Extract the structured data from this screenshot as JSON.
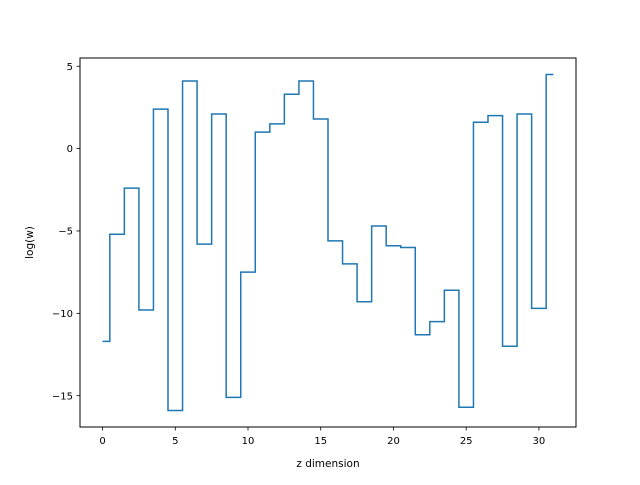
{
  "chart_data": {
    "type": "line",
    "drawstyle": "steps-mid",
    "title": "",
    "xlabel": "z dimension",
    "ylabel": "log(w)",
    "xlim": [
      -1.55,
      32.55
    ],
    "ylim": [
      -16.9,
      5.5
    ],
    "xticks": [
      0,
      5,
      10,
      15,
      20,
      25,
      30
    ],
    "xtick_labels": [
      "0",
      "5",
      "10",
      "15",
      "20",
      "25",
      "30"
    ],
    "yticks": [
      -15,
      -10,
      -5,
      0,
      5
    ],
    "ytick_labels": [
      "−15",
      "−10",
      "−5",
      "0",
      "5"
    ],
    "grid": false,
    "legend": "none",
    "series": [
      {
        "color": "#1f77b4",
        "x": [
          0,
          1,
          2,
          3,
          4,
          5,
          6,
          7,
          8,
          9,
          10,
          11,
          12,
          13,
          14,
          15,
          16,
          17,
          18,
          19,
          20,
          21,
          22,
          23,
          24,
          25,
          26,
          27,
          28,
          29,
          30,
          31
        ],
        "y": [
          -11.7,
          -5.2,
          -2.4,
          -9.8,
          2.4,
          -15.9,
          4.1,
          -5.8,
          2.1,
          -15.1,
          -7.5,
          1.0,
          1.5,
          3.3,
          4.1,
          1.8,
          -5.6,
          -7.0,
          -9.3,
          -4.7,
          -5.9,
          -6.0,
          -11.3,
          -10.5,
          -8.6,
          -15.7,
          1.6,
          2.0,
          -12.0,
          2.1,
          -9.7,
          4.5
        ]
      }
    ]
  }
}
